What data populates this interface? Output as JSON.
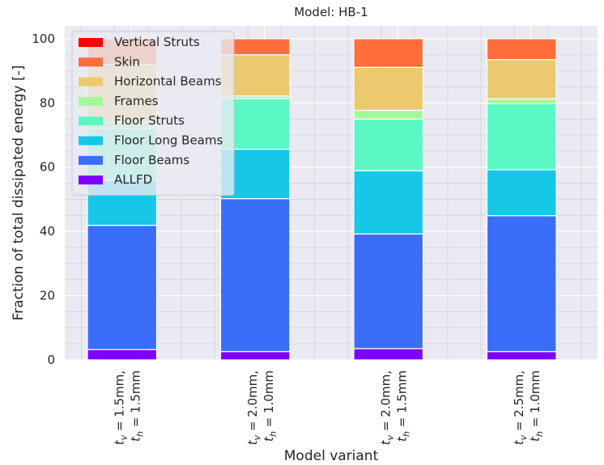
{
  "chart_data": {
    "type": "bar",
    "stacked": true,
    "title": "Model: HB-1",
    "xlabel": "Model variant",
    "ylabel": "Fraction of total dissipated energy [-]",
    "ylim": [
      0,
      104
    ],
    "yticks": [
      0,
      20,
      40,
      60,
      80,
      100
    ],
    "grid": true,
    "legend_position": "upper-left",
    "categories": [
      {
        "line1": "t_v = 1.5mm,",
        "line2": "t_h = 1.5mm",
        "sub1": "v",
        "sub2": "h",
        "val1": " = 1.5mm,",
        "val2": " = 1.5mm"
      },
      {
        "line1": "t_v = 2.0mm,",
        "line2": "t_h = 1.0mm",
        "sub1": "v",
        "sub2": "h",
        "val1": " = 2.0mm,",
        "val2": " = 1.0mm"
      },
      {
        "line1": "t_v = 2.0mm,",
        "line2": "t_h = 1.5mm",
        "sub1": "v",
        "sub2": "h",
        "val1": " = 2.0mm,",
        "val2": " = 1.5mm"
      },
      {
        "line1": "t_v = 2.5mm,",
        "line2": "t_h = 1.0mm",
        "sub1": "v",
        "sub2": "h",
        "val1": " = 2.5mm,",
        "val2": " = 1.0mm"
      }
    ],
    "series": [
      {
        "name": "ALLFD",
        "color": "#7f00ff",
        "values": [
          3.2,
          2.6,
          3.5,
          2.6
        ]
      },
      {
        "name": "Floor Beams",
        "color": "#3b6ef8",
        "values": [
          38.7,
          47.6,
          35.7,
          42.3
        ]
      },
      {
        "name": "Floor Long Beams",
        "color": "#16c7e8",
        "values": [
          14.1,
          15.4,
          19.7,
          14.3
        ]
      },
      {
        "name": "Floor Struts",
        "color": "#5bf8c6",
        "values": [
          16.0,
          15.8,
          16.1,
          20.6
        ]
      },
      {
        "name": "Frames",
        "color": "#a3f99a",
        "values": [
          2.0,
          0.8,
          2.7,
          1.5
        ]
      },
      {
        "name": "Horizontal Beams",
        "color": "#ecc86f",
        "values": [
          18.0,
          12.8,
          13.4,
          12.2
        ]
      },
      {
        "name": "Skin",
        "color": "#ff6d3a",
        "values": [
          8.0,
          5.0,
          8.9,
          6.5
        ]
      },
      {
        "name": "Vertical Struts",
        "color": "#ff0000",
        "values": [
          0.0,
          0.0,
          0.0,
          0.0
        ]
      }
    ]
  }
}
